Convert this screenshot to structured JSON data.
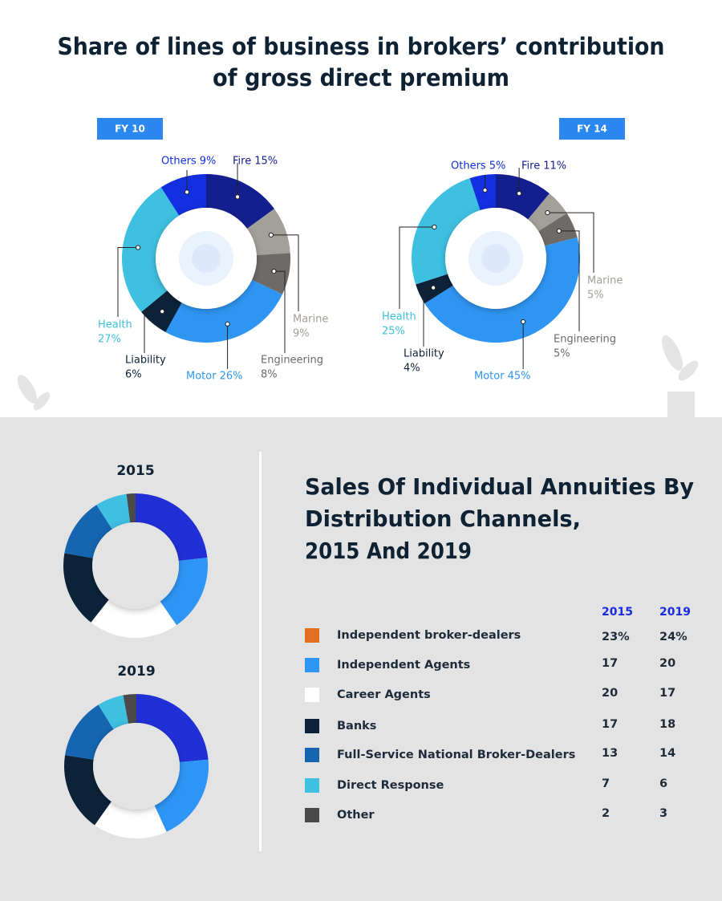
{
  "title": [
    "Share of lines of business in brokers’ contribution",
    "of gross direct premium"
  ],
  "chart_data": [
    {
      "type": "donut",
      "label": "FY 10",
      "categories": [
        "Fire",
        "Marine",
        "Engineering",
        "Motor",
        "Liability",
        "Health",
        "Others"
      ],
      "values": [
        15,
        9,
        8,
        26,
        6,
        27,
        9
      ],
      "value_labels": [
        "15%",
        "9%",
        "8%",
        "26%",
        "6%",
        "27%",
        "9%"
      ],
      "colors": [
        "#141f8f",
        "#a39f99",
        "#6e6a67",
        "#2f95f2",
        "#0c2238",
        "#3ec0e0",
        "#1230e0"
      ]
    },
    {
      "type": "donut",
      "label": "FY 14",
      "categories": [
        "Fire",
        "Marine",
        "Engineering",
        "Motor",
        "Liability",
        "Health",
        "Others"
      ],
      "values": [
        11,
        5,
        5,
        45,
        4,
        25,
        5
      ],
      "value_labels": [
        "11%",
        "5%",
        "5%",
        "45%",
        "4%",
        "25%",
        "5%"
      ],
      "colors": [
        "#141f8f",
        "#a39f99",
        "#6e6a67",
        "#2f95f2",
        "#0c2238",
        "#3ec0e0",
        "#1230e0"
      ]
    },
    {
      "type": "donut-pair",
      "title": [
        "Sales Of Individual Annuities By",
        "Distribution Channels,",
        "2015 And 2019"
      ],
      "categories": [
        "Independent broker-dealers",
        "Independent Agents",
        "Career Agents",
        "Banks",
        "Full-Service National Broker-Dealers",
        "Direct Response",
        "Other"
      ],
      "colors": [
        "#2130d6",
        "#2d95f5",
        "#ffffff",
        "#0c2238",
        "#1565b0",
        "#3ec0e0",
        "#4a4a4a"
      ],
      "legend_colors": [
        "#e07020",
        "#2d95f5",
        "#ffffff",
        "#0c2238",
        "#1565b0",
        "#3ec0e0",
        "#4a4a4a"
      ],
      "series": [
        {
          "name": "2015",
          "values": [
            23,
            17,
            20,
            17,
            13,
            7,
            2
          ],
          "value_labels": [
            "23%",
            "17",
            "20",
            "17",
            "13",
            "7",
            "2"
          ]
        },
        {
          "name": "2019",
          "values": [
            24,
            20,
            17,
            18,
            14,
            6,
            3
          ],
          "value_labels": [
            "24%",
            "20",
            "17",
            "18",
            "14",
            "6",
            "3"
          ]
        }
      ]
    }
  ]
}
